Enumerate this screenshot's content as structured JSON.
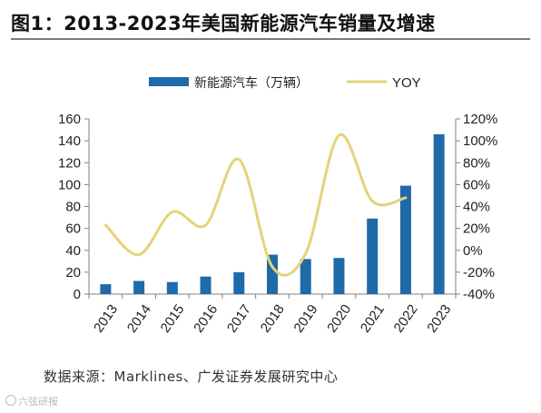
{
  "title": "图1：2013-2023年美国新能源汽车销量及增速",
  "source": "数据来源：Marklines、广发证券发展研究中心",
  "watermark": "六弦研报",
  "colors": {
    "bar": "#1f6aa8",
    "line": "#e6d27a",
    "axis": "#808080"
  },
  "chart_data": {
    "type": "bar",
    "categories": [
      "2013",
      "2014",
      "2015",
      "2016",
      "2017",
      "2018",
      "2019",
      "2020",
      "2021",
      "2022",
      "2023"
    ],
    "series": [
      {
        "name": "新能源汽车（万辆）",
        "type": "bar",
        "axis": "left",
        "values": [
          9,
          12,
          11,
          16,
          20,
          36,
          32,
          33,
          69,
          99,
          146
        ]
      },
      {
        "name": "YOY",
        "type": "line",
        "axis": "right",
        "values": [
          23,
          -4,
          35,
          23,
          83,
          -15,
          -3,
          105,
          45,
          48,
          null
        ]
      }
    ],
    "y_left": {
      "lim": [
        0,
        160
      ],
      "ticks": [
        "0",
        "20",
        "40",
        "60",
        "80",
        "100",
        "120",
        "140",
        "160"
      ]
    },
    "y_right": {
      "lim": [
        -40,
        120
      ],
      "ticks": [
        "-40%",
        "-20%",
        "0%",
        "20%",
        "40%",
        "60%",
        "80%",
        "100%",
        "120%"
      ]
    },
    "legend_position": "top",
    "grid": false
  }
}
